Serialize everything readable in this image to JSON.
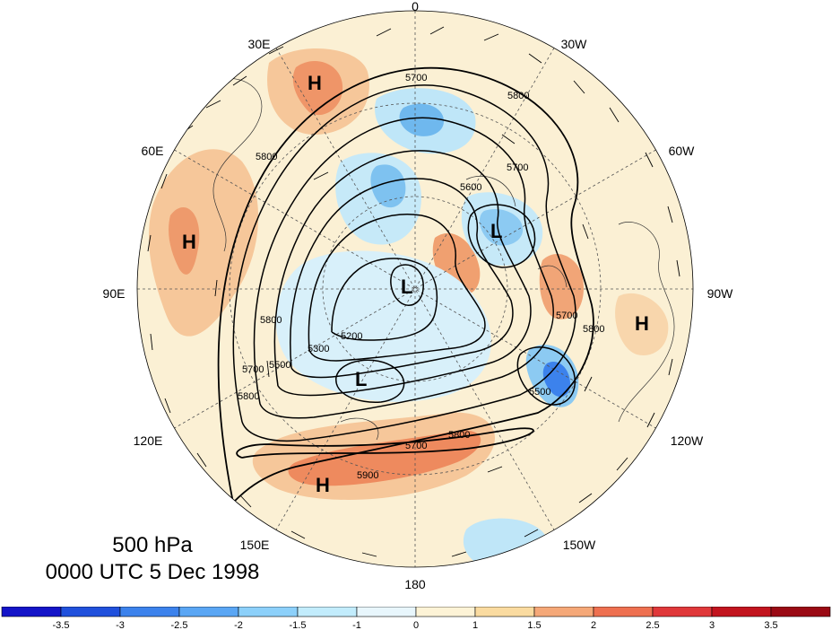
{
  "title": {
    "level": "500 hPa",
    "time": "0000 UTC 5 Dec 1998"
  },
  "longitude_labels": [
    "0",
    "30W",
    "60W",
    "90W",
    "120W",
    "150W",
    "180",
    "150E",
    "120E",
    "90E",
    "60E",
    "30E"
  ],
  "contour_levels": [
    "5200",
    "5300",
    "5500",
    "5600",
    "5700",
    "5800",
    "5900"
  ],
  "pressure_centers": [
    "H",
    "H",
    "H",
    "H",
    "L",
    "L",
    "L"
  ],
  "colorbar": {
    "ticks": [
      "-3.5",
      "-3",
      "-2.5",
      "-2",
      "-1.5",
      "-1",
      "0",
      "1",
      "1.5",
      "2",
      "2.5",
      "3",
      "3.5"
    ],
    "colors": [
      "#1414c8",
      "#2050dc",
      "#3c82ec",
      "#5aa6f4",
      "#8cd0fa",
      "#c2ecfc",
      "#e8f6fc",
      "#fdf3d6",
      "#fadba0",
      "#f5a878",
      "#ee7050",
      "#e0383a",
      "#c2141e",
      "#9a0a14"
    ]
  }
}
